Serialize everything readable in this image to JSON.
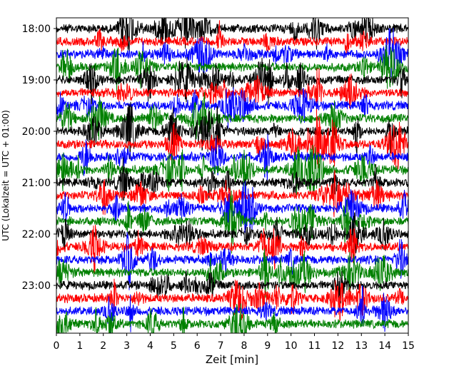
{
  "chart_data": {
    "type": "line",
    "description_kind": "helicorder (seismogram drum plot)",
    "xlabel": "Zeit  [min]",
    "ylabel": "UTC (Lokalzeit = UTC + 01:00)",
    "xlim": [
      0,
      15
    ],
    "x_ticks": [
      0,
      1,
      2,
      3,
      4,
      5,
      6,
      7,
      8,
      9,
      10,
      11,
      12,
      13,
      14,
      15
    ],
    "x_tick_labels": [
      "0",
      "1",
      "2",
      "3",
      "4",
      "5",
      "6",
      "7",
      "8",
      "9",
      "10",
      "11",
      "12",
      "13",
      "14",
      "15"
    ],
    "y_tick_labels": [
      "18:00",
      "19:00",
      "20:00",
      "21:00",
      "22:00",
      "23:00"
    ],
    "trace_start_minutes": 0,
    "trace_interval_minutes": 15,
    "trace_count": 24,
    "trace_colors": [
      "#000000",
      "#ff0000",
      "#0000ff",
      "#008000"
    ],
    "grid": false,
    "legend": "none"
  }
}
